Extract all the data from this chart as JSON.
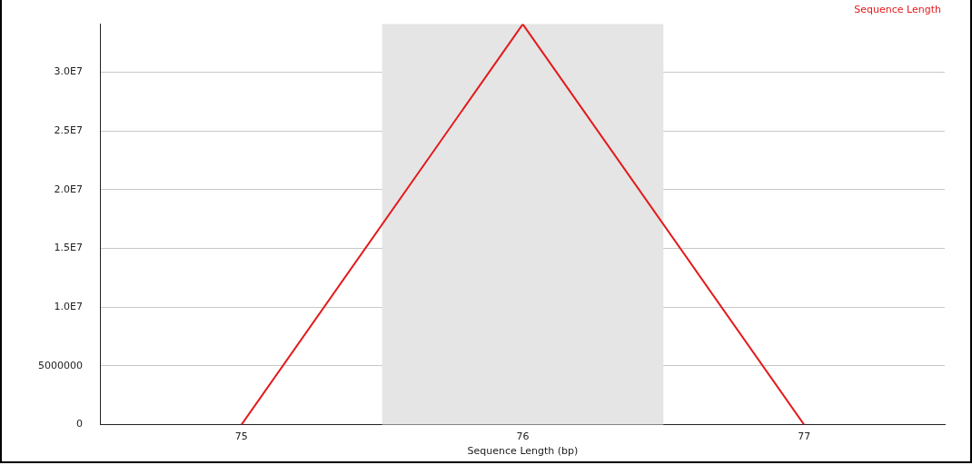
{
  "chart_data": {
    "type": "line",
    "xlabel": "Sequence Length (bp)",
    "x": [
      75,
      76,
      77
    ],
    "series": [
      {
        "name": "Sequence Length",
        "color": "#e31a1c",
        "values": [
          0,
          34100000,
          0
        ]
      }
    ],
    "xlim": [
      74.5,
      77.5
    ],
    "xticks": [
      75,
      76,
      77
    ],
    "ylim": [
      0,
      34100000
    ],
    "yticks": [
      0,
      5000000,
      {
        "value": 10000000,
        "label": "1.0E7"
      },
      {
        "value": 15000000,
        "label": "1.5E7"
      },
      {
        "value": 20000000,
        "label": "2.0E7"
      },
      {
        "value": 25000000,
        "label": "2.5E7"
      },
      {
        "value": 30000000,
        "label": "3.0E7"
      }
    ],
    "bands": [
      {
        "axis": "x",
        "from": 75.5,
        "to": 76.5,
        "color": "#e5e5e5"
      }
    ],
    "grid": "y",
    "legend": "top right",
    "marker": "none",
    "line_style": "solid"
  }
}
